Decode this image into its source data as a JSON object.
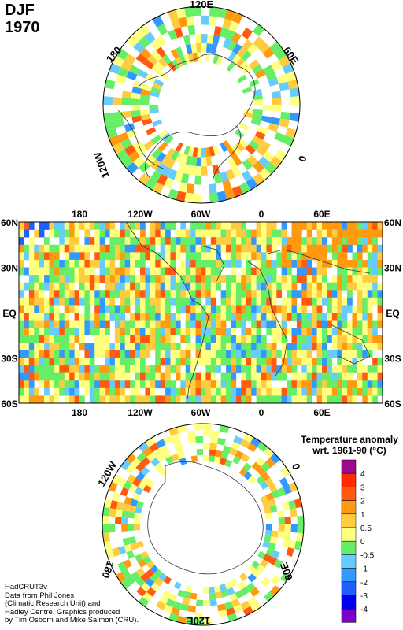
{
  "header": {
    "season": "DJF",
    "year": "1970"
  },
  "north_polar": {
    "labels": {
      "top": "120E",
      "upper_left": "180",
      "upper_right": "60E",
      "right": "0",
      "lower_left": "120W"
    }
  },
  "world_map": {
    "left_labels": [
      "60N",
      "30N",
      "EQ",
      "30S",
      "60S"
    ],
    "right_labels": [
      "60N",
      "30N",
      "EQ",
      "30S",
      "60S"
    ],
    "top_labels": [
      "180",
      "120W",
      "60W",
      "0",
      "60E"
    ],
    "bottom_labels": [
      "180",
      "120W",
      "60W",
      "0",
      "60E"
    ]
  },
  "south_polar": {
    "labels": {
      "upper_left": "120W",
      "upper_right": "0",
      "lower_left": "180",
      "lower_right": "60E",
      "bottom": "120E"
    }
  },
  "legend": {
    "title_line1": "Temperature anomaly",
    "title_line2": "wrt. 1961-90  (°C)",
    "levels": [
      "4",
      "3",
      "2",
      "1",
      "0.5",
      "0",
      "-0.5",
      "-1",
      "-2",
      "-3",
      "-4"
    ],
    "colors": [
      "#9a0a8a",
      "#ff2a00",
      "#ff5a10",
      "#ff9a10",
      "#ffcc40",
      "#ffff80",
      "#66ee66",
      "#66ccff",
      "#3399ff",
      "#1f5fff",
      "#0000ee",
      "#7a00cc"
    ]
  },
  "credits": {
    "line1": "HadCRUT3v",
    "line2": "Data from Phil Jones",
    "line3": "(Climatic Research Unit) and",
    "line4": "Hadley Centre.  Graphics produced",
    "line5": "by Tim Osborn and Mike Salmon (CRU)."
  }
}
